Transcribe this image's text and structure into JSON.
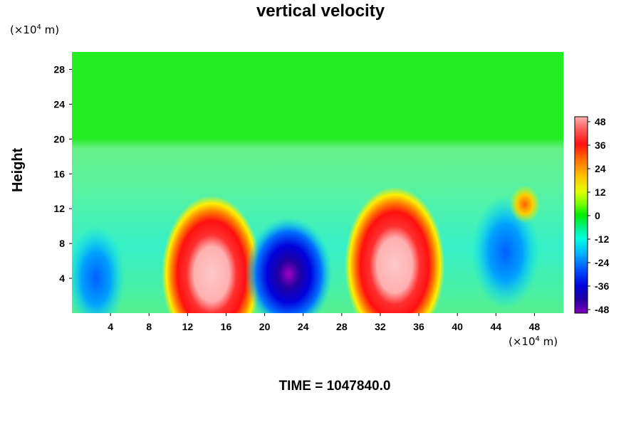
{
  "chart_data": {
    "type": "heatmap",
    "title": "vertical velocity",
    "ylabel": "Height",
    "y_unit": "(×10",
    "y_unit_exp": "4",
    "y_unit_end": " m)",
    "x_unit": "(×10",
    "x_unit_exp": "4",
    "x_unit_end": " m)",
    "xlim": [
      0,
      51
    ],
    "ylim": [
      0,
      30
    ],
    "x_ticks": [
      "4",
      "8",
      "12",
      "16",
      "20",
      "24",
      "28",
      "32",
      "36",
      "40",
      "44",
      "48"
    ],
    "y_ticks": [
      "4",
      "8",
      "12",
      "16",
      "20",
      "24",
      "28"
    ],
    "colorbar": {
      "range": [
        -48,
        48
      ],
      "ticks": [
        "48",
        "36",
        "24",
        "12",
        "0",
        "-12",
        "-24",
        "-36",
        "-48"
      ]
    },
    "features": [
      {
        "x": 14.5,
        "y": 4.5,
        "value": 50
      },
      {
        "x": 33.5,
        "y": 5.5,
        "value": 50
      },
      {
        "x": 22.5,
        "y": 4.5,
        "value": -48
      },
      {
        "x": 45,
        "y": 7,
        "value": -34
      },
      {
        "x": 2.5,
        "y": 4,
        "value": -18
      },
      {
        "x": 47,
        "y": 12.5,
        "value": 22
      }
    ]
  },
  "footer": {
    "time": "TIME = 1047840.0"
  }
}
